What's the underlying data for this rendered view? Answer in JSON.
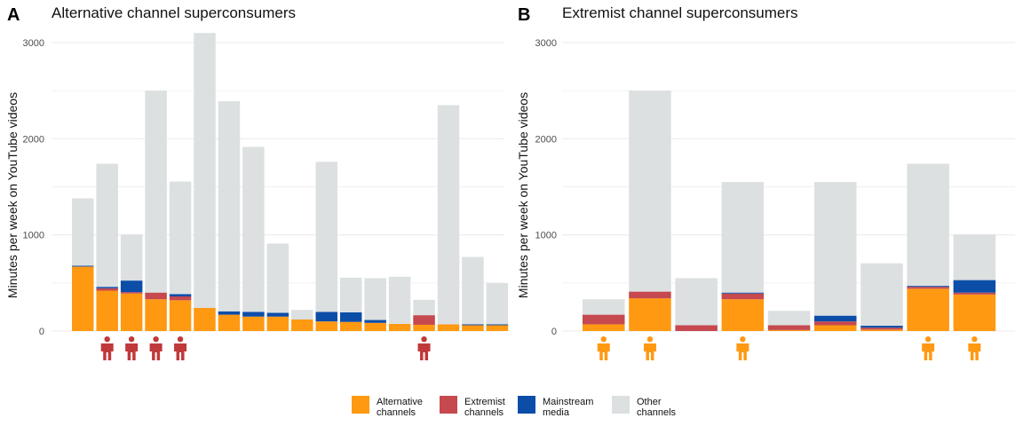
{
  "chart_data": [
    {
      "type": "bar",
      "stacked": true,
      "letter": "A",
      "title": "Alternative channel superconsumers",
      "xlabel": "",
      "ylabel": "Minutes per week on YouTube videos",
      "ylim": [
        0,
        3100
      ],
      "yticks": [
        0,
        1000,
        2000,
        3000
      ],
      "categories": [
        "1",
        "2",
        "3",
        "4",
        "5",
        "6",
        "7",
        "8",
        "9",
        "10",
        "11",
        "12",
        "13",
        "14",
        "15",
        "16",
        "17",
        "18"
      ],
      "series": [
        {
          "name": "Alternative channels",
          "values": [
            670,
            420,
            390,
            330,
            320,
            240,
            170,
            150,
            150,
            120,
            100,
            95,
            85,
            75,
            65,
            70,
            60,
            60
          ]
        },
        {
          "name": "Extremist channels",
          "values": [
            0,
            25,
            15,
            70,
            40,
            0,
            0,
            0,
            0,
            0,
            0,
            0,
            0,
            0,
            100,
            0,
            0,
            0
          ]
        },
        {
          "name": "Mainstream media",
          "values": [
            10,
            15,
            120,
            0,
            25,
            0,
            35,
            50,
            40,
            0,
            100,
            100,
            30,
            0,
            0,
            0,
            10,
            10
          ]
        },
        {
          "name": "Other channels",
          "values": [
            700,
            1280,
            480,
            2100,
            1170,
            2860,
            2185,
            1715,
            720,
            100,
            1560,
            360,
            435,
            490,
            160,
            2280,
            700,
            430
          ]
        }
      ],
      "person_markers": [
        2,
        3,
        4,
        5,
        15
      ]
    },
    {
      "type": "bar",
      "stacked": true,
      "letter": "B",
      "title": "Extremist channel superconsumers",
      "xlabel": "",
      "ylabel": "Minutes per week on YouTube videos",
      "ylim": [
        0,
        3100
      ],
      "yticks": [
        0,
        1000,
        2000,
        3000
      ],
      "categories": [
        "1",
        "2",
        "3",
        "4",
        "5",
        "6",
        "7",
        "8",
        "9"
      ],
      "series": [
        {
          "name": "Alternative channels",
          "values": [
            70,
            340,
            0,
            330,
            10,
            60,
            15,
            440,
            380
          ]
        },
        {
          "name": "Extremist channels",
          "values": [
            100,
            70,
            60,
            60,
            50,
            40,
            20,
            20,
            20
          ]
        },
        {
          "name": "Mainstream media",
          "values": [
            0,
            0,
            0,
            10,
            0,
            60,
            20,
            10,
            130
          ]
        },
        {
          "name": "Other channels",
          "values": [
            160,
            2090,
            490,
            1150,
            150,
            1390,
            650,
            1270,
            475
          ]
        }
      ],
      "person_markers": [
        1,
        2,
        4,
        8,
        9
      ]
    }
  ],
  "legend": [
    {
      "line1": "Alternative",
      "line2": "channels",
      "color": "#FF9912"
    },
    {
      "line1": "Extremist",
      "line2": "channels",
      "color": "#C5494E"
    },
    {
      "line1": "Mainstream",
      "line2": "media",
      "color": "#0C4DA8"
    },
    {
      "line1": "Other",
      "line2": "channels",
      "color": "#DCE0E1"
    }
  ],
  "colors": {
    "alternative": "#FF9912",
    "extremist": "#C5494E",
    "mainstream": "#0C4DA8",
    "other": "#DCE0E1",
    "marker_alternative_panel": "#C0393B",
    "marker_extremist_panel": "#FF9912",
    "grid": "#EBEBEB"
  }
}
